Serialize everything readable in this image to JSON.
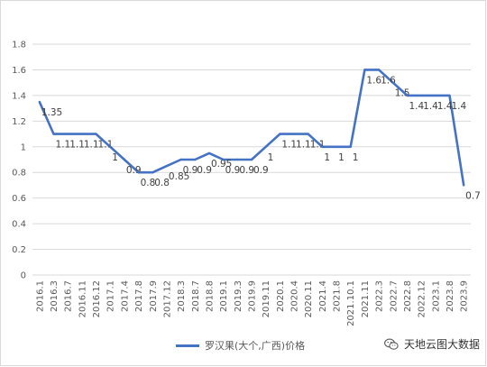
{
  "chart_data": {
    "type": "line",
    "x": [
      "2016.1",
      "2016.3",
      "2016.7",
      "2016.11",
      "2016.12",
      "2017.1",
      "2017.4",
      "2017.8",
      "2017.9",
      "2017.12",
      "2018.3",
      "2018.7",
      "2018.8",
      "2019.1",
      "2019.3",
      "2019.9",
      "2019.11",
      "2020.1",
      "2020.4",
      "2020.11",
      "2021.4",
      "2021.8",
      "2021.10.1",
      "2021.11",
      "2022.3",
      "2022.7",
      "2022.8",
      "2022.12",
      "2023.1",
      "2023.8",
      "2023.9"
    ],
    "series": [
      {
        "name": "罗汉果(大个,广西)价格",
        "values": [
          1.35,
          1.1,
          1.1,
          1.1,
          1.1,
          1,
          0.9,
          0.8,
          0.8,
          0.85,
          0.9,
          0.9,
          0.95,
          0.9,
          0.9,
          0.9,
          1,
          1.1,
          1.1,
          1.1,
          1,
          1,
          1,
          1.6,
          1.6,
          1.5,
          1.4,
          1.4,
          1.4,
          1.4,
          0.7
        ]
      }
    ],
    "data_labels": [
      "1.35",
      "1.1",
      "1.1",
      "1.1",
      "1.1",
      "1",
      "0.9",
      "0.8",
      "0.8",
      "0.85",
      "0.9",
      "0.9",
      "0.95",
      "0.9",
      "0.9",
      "0.9",
      "1",
      "1.1",
      "1.1",
      "1.1",
      "1",
      "1",
      "1",
      "1.6",
      "1.6",
      "1.5",
      "1.4",
      "1.4",
      "1.4",
      "1.4",
      "0.7"
    ],
    "yticks": [
      "0",
      "0.2",
      "0.4",
      "0.6",
      "0.8",
      "1",
      "1.2",
      "1.4",
      "1.6",
      "1.8"
    ],
    "ylim": [
      0,
      1.8
    ],
    "grid": true,
    "legend": "bottom",
    "title": "",
    "xlabel": "",
    "ylabel": "",
    "colors": {
      "line": "#4472c4",
      "grid": "#d9d9d9",
      "text": "#595959"
    }
  },
  "watermark": {
    "text": "天地云图大数据",
    "icon": "wechat-icon"
  }
}
